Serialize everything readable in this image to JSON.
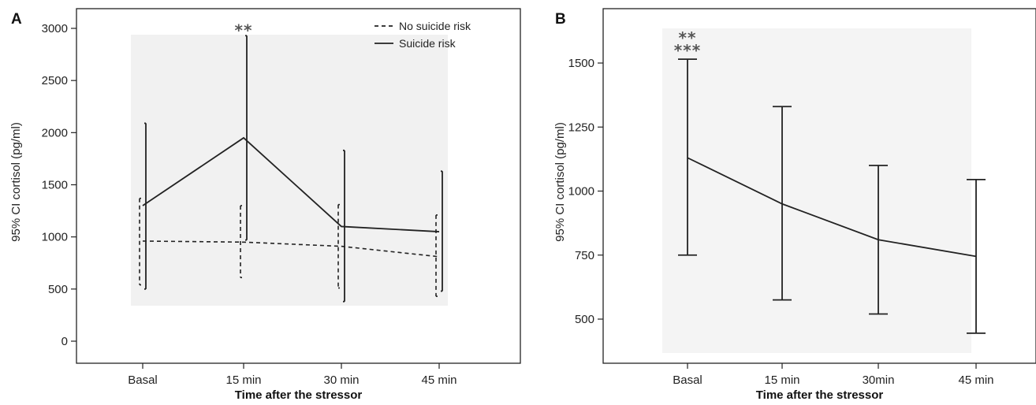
{
  "chart_data": [
    {
      "panel_label": "A",
      "type": "line",
      "categories": [
        "Basal",
        "15 min",
        "30 min",
        "45 min"
      ],
      "xlabel": "Time after the stressor",
      "ylabel": "95% CI cortisol (pg/ml)",
      "ylim": [
        0,
        3000
      ],
      "yticks": [
        0,
        500,
        1000,
        1500,
        2000,
        2500,
        3000
      ],
      "plot_background": "#f1f1f1",
      "series": [
        {
          "name": "No suicide risk",
          "style": "dashed",
          "values": [
            960,
            950,
            910,
            810
          ],
          "ci_low": [
            540,
            610,
            510,
            430
          ],
          "ci_high": [
            1370,
            1300,
            1310,
            1210
          ]
        },
        {
          "name": "Suicide risk",
          "style": "solid",
          "values": [
            1300,
            1950,
            1100,
            1050
          ],
          "ci_low": [
            500,
            970,
            380,
            480
          ],
          "ci_high": [
            2090,
            2930,
            1830,
            1630
          ]
        }
      ],
      "annotations": [
        {
          "category": "15 min",
          "text": "**"
        }
      ],
      "legend_position": "top-right"
    },
    {
      "panel_label": "B",
      "type": "line",
      "categories": [
        "Basal",
        "15 min",
        "30min",
        "45 min"
      ],
      "xlabel": "Time after the stressor",
      "ylabel": "95% CI cortisol (pg/ml)",
      "ylim": [
        420,
        1660
      ],
      "yticks": [
        500,
        750,
        1000,
        1250,
        1500
      ],
      "plot_background": "#f4f4f4",
      "series": [
        {
          "style": "solid",
          "values": [
            1130,
            950,
            810,
            745
          ],
          "ci_low": [
            750,
            575,
            520,
            445
          ],
          "ci_high": [
            1515,
            1330,
            1100,
            1045
          ]
        }
      ],
      "annotations": [
        {
          "category": "Basal",
          "text": "**",
          "line": 1
        },
        {
          "category": "Basal",
          "text": "***",
          "line": 2
        }
      ]
    }
  ]
}
